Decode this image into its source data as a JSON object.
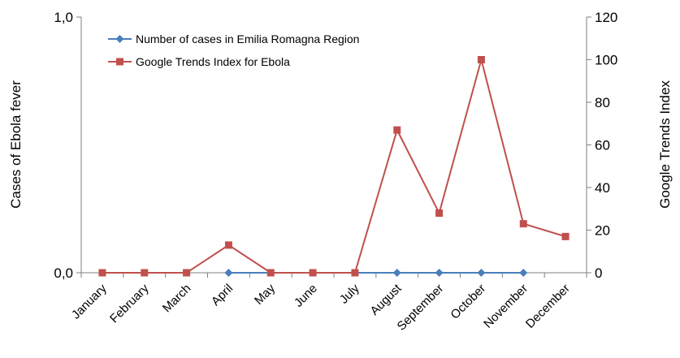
{
  "chart_data": {
    "type": "line",
    "categories": [
      "January",
      "February",
      "March",
      "April",
      "May",
      "June",
      "July",
      "August",
      "September",
      "October",
      "November",
      "December"
    ],
    "series": [
      {
        "name": "Number of cases in Emilia Romagna Region",
        "axis": "left",
        "color": "#4a7ebb",
        "marker": "diamond",
        "values": [
          null,
          null,
          null,
          0,
          null,
          null,
          null,
          0,
          0,
          0,
          0,
          null
        ]
      },
      {
        "name": "Google Trends Index for Ebola",
        "axis": "right",
        "color": "#c0504d",
        "marker": "square",
        "values": [
          0,
          0,
          0,
          13,
          0,
          0,
          0,
          67,
          28,
          100,
          23,
          17
        ]
      }
    ],
    "ylabel_left": "Cases of Ebola fever",
    "ylabel_right": "Google Trends Index",
    "ylim_left": [
      0,
      1
    ],
    "ylim_right": [
      0,
      120
    ],
    "yticks_left": [
      "0,0",
      "1,0"
    ],
    "yticks_right": [
      "0",
      "20",
      "40",
      "60",
      "80",
      "100",
      "120"
    ],
    "grid": false,
    "legend_position": "top-left"
  }
}
